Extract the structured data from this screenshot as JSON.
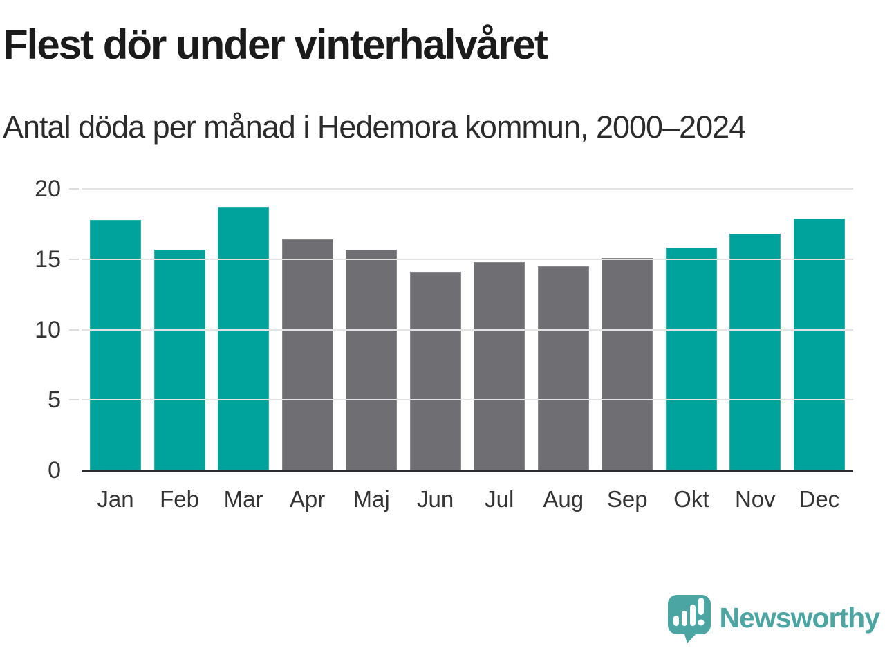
{
  "chart_data": {
    "type": "bar",
    "title": "Flest dör under vinterhalvåret",
    "subtitle": "Antal döda per månad i Hedemora kommun, 2000–2024",
    "categories": [
      "Jan",
      "Feb",
      "Mar",
      "Apr",
      "Maj",
      "Jun",
      "Jul",
      "Aug",
      "Sep",
      "Okt",
      "Nov",
      "Dec"
    ],
    "values": [
      17.8,
      15.7,
      18.7,
      16.4,
      15.7,
      14.1,
      14.8,
      14.5,
      15.1,
      15.8,
      16.8,
      17.9
    ],
    "highlighted": [
      true,
      true,
      true,
      false,
      false,
      false,
      false,
      false,
      false,
      true,
      true,
      true
    ],
    "xlabel": "",
    "ylabel": "",
    "ylim": [
      0,
      20
    ],
    "yticks": [
      0,
      5,
      10,
      15,
      20
    ],
    "grid": true,
    "legend": "none",
    "colors": {
      "highlight": "#00a39b",
      "base": "#6e6e73",
      "axis_line": "#2d2d31",
      "gridline": "#e3e3e3",
      "tick_label": "#333333"
    }
  },
  "branding": {
    "logo_text": "Newsworthy",
    "logo_color": "#4ba5a2",
    "logo_icon": "newsworthy-speech-bubble-chart-icon",
    "icon_mark_color": "#ffffff"
  }
}
